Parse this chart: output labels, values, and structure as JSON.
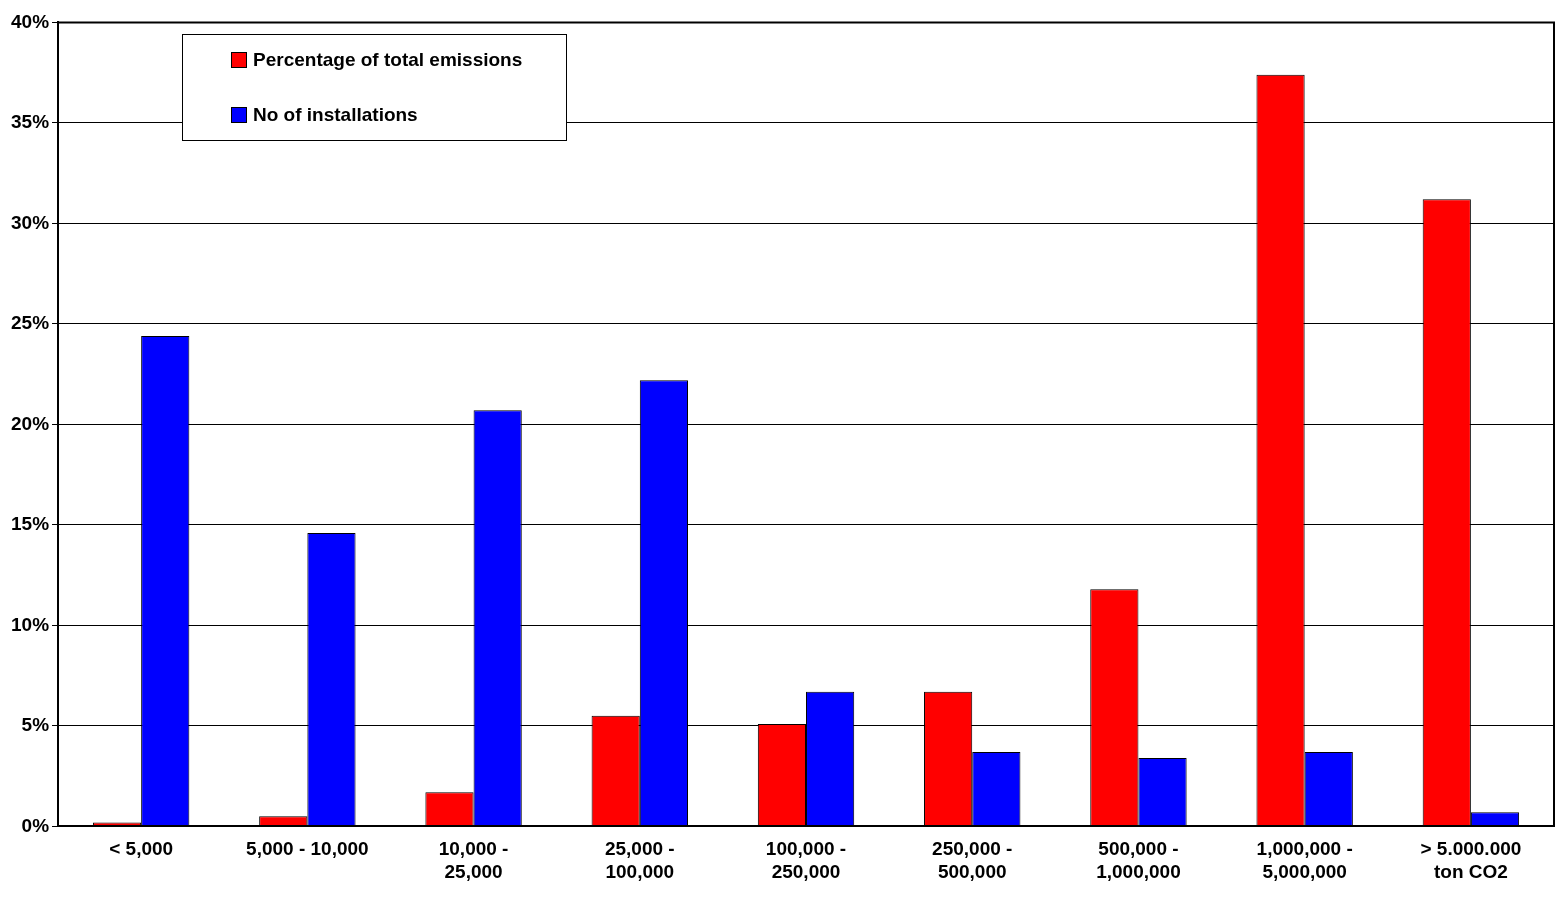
{
  "chart_data": {
    "type": "bar",
    "categories": [
      "< 5,000",
      "5,000 - 10,000",
      "10,000 -\n25,000",
      "25,000 -\n100,000",
      "100,000 -\n250,000",
      "250,000 -\n500,000",
      "500,000 -\n1,000,000",
      "1,000,000 -\n5,000,000",
      "> 5.000.000\nton CO2"
    ],
    "series": [
      {
        "name": "Percentage of total emissions",
        "color": "#ff0000",
        "values": [
          0.2,
          0.5,
          1.7,
          5.5,
          5.1,
          6.7,
          11.8,
          37.4,
          31.2
        ]
      },
      {
        "name": "No of installations",
        "color": "#0000ff",
        "values": [
          24.4,
          14.6,
          20.7,
          22.2,
          6.7,
          3.7,
          3.4,
          3.7,
          0.7
        ]
      }
    ],
    "ylim": [
      0,
      40
    ],
    "yticks": [
      {
        "value": 0,
        "label": "0%"
      },
      {
        "value": 5,
        "label": "5%"
      },
      {
        "value": 10,
        "label": "10%"
      },
      {
        "value": 15,
        "label": "15%"
      },
      {
        "value": 20,
        "label": "20%"
      },
      {
        "value": 25,
        "label": "25%"
      },
      {
        "value": 30,
        "label": "30%"
      },
      {
        "value": 35,
        "label": "35%"
      },
      {
        "value": 40,
        "label": "40%"
      }
    ],
    "grid": "y",
    "legend": "top left"
  }
}
